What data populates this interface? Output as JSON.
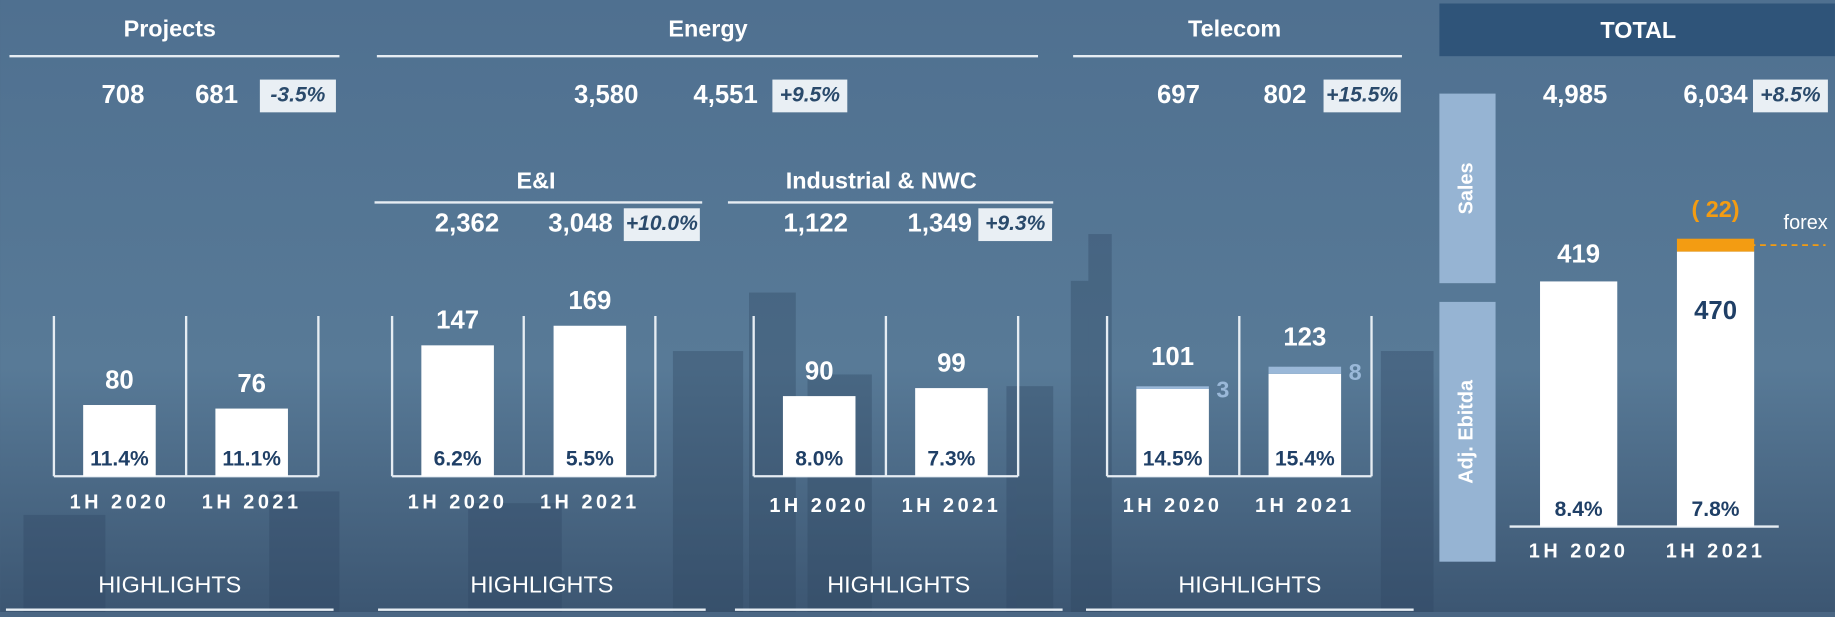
{
  "chart_data": [
    {
      "type": "bar",
      "title": "Projects",
      "sales": {
        "values": [
          708,
          681
        ]
      },
      "growth": {
        "value": -3.5,
        "label": "-3.5%"
      },
      "categories": [
        "1H 2020",
        "1H 2021"
      ],
      "values": [
        80,
        76
      ],
      "color": "#ffffff",
      "margins": {
        "values": [
          11.4,
          11.1
        ],
        "value_labels": [
          "11.4%",
          "11.1%"
        ]
      },
      "ylim": [
        0,
        180
      ],
      "footer": "HIGHLIGHTS"
    },
    {
      "type": "summary",
      "title": "Energy",
      "sales": {
        "values": [
          3580,
          4551
        ],
        "value_labels": [
          "3,580",
          "4,551"
        ]
      },
      "growth": {
        "value": 9.5,
        "label": "+9.5%"
      }
    },
    {
      "type": "bar",
      "title": "E&I",
      "sales": {
        "values": [
          2362,
          3048
        ],
        "value_labels": [
          "2,362",
          "3,048"
        ]
      },
      "growth": {
        "value": 10.0,
        "label": "+10.0%"
      },
      "categories": [
        "1H 2020",
        "1H 2021"
      ],
      "values": [
        147,
        169
      ],
      "color": "#ffffff",
      "margins": {
        "values": [
          6.2,
          5.5
        ],
        "value_labels": [
          "6.2%",
          "5.5%"
        ]
      },
      "ylim": [
        0,
        180
      ],
      "footer": "HIGHLIGHTS"
    },
    {
      "type": "bar",
      "title": "Industrial & NWC",
      "sales": {
        "values": [
          1122,
          1349
        ],
        "value_labels": [
          "1,122",
          "1,349"
        ]
      },
      "growth": {
        "value": 9.3,
        "label": "+9.3%"
      },
      "categories": [
        "1H 2020",
        "1H 2021"
      ],
      "values": [
        90,
        99
      ],
      "color": "#ffffff",
      "margins": {
        "values": [
          8.0,
          7.3
        ],
        "value_labels": [
          "8.0%",
          "7.3%"
        ]
      },
      "ylim": [
        0,
        180
      ],
      "footer": "HIGHLIGHTS"
    },
    {
      "type": "stacked_bar",
      "title": "Telecom",
      "sales": {
        "values": [
          697,
          802
        ]
      },
      "growth": {
        "value": 15.5,
        "label": "+15.5%"
      },
      "categories": [
        "1H 2020",
        "1H 2021"
      ],
      "series": [
        {
          "color": "#ffffff",
          "values": [
            98,
            115
          ]
        },
        {
          "color": "#9ab8d8",
          "values": [
            3,
            8
          ]
        }
      ],
      "totals": [
        101,
        123
      ],
      "margins": {
        "values": [
          14.5,
          15.4
        ],
        "value_labels": [
          "14.5%",
          "15.4%"
        ]
      },
      "ylim": [
        0,
        180
      ],
      "footer": "HIGHLIGHTS"
    },
    {
      "type": "total",
      "title": "TOTAL",
      "sales": {
        "values": [
          4985,
          6034
        ],
        "value_labels": [
          "4,985",
          "6,034"
        ]
      },
      "growth": {
        "value": 8.5,
        "label": "+8.5%"
      },
      "side_labels": [
        "Sales",
        "Adj. Ebitda"
      ],
      "categories": [
        "1H 2020",
        "1H 2021"
      ],
      "series": [
        {
          "color": "#ffffff",
          "values": [
            419,
            470
          ]
        },
        {
          "color": "#f39c12",
          "values": [
            null,
            22
          ],
          "value_labels": [
            null,
            "( 22)"
          ]
        }
      ],
      "annotation": "forex",
      "margins": {
        "values": [
          8.4,
          7.8
        ],
        "value_labels": [
          "8.4%",
          "7.8%"
        ]
      },
      "ylim": [
        0,
        500
      ]
    }
  ]
}
